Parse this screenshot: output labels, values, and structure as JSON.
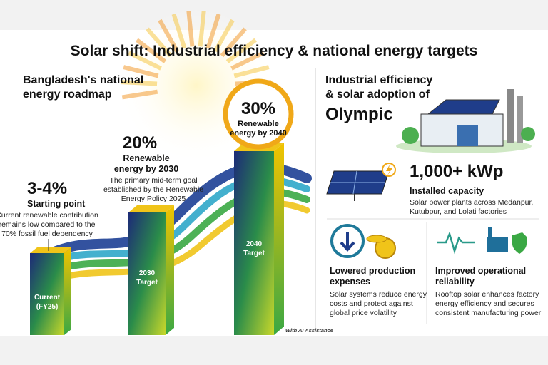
{
  "title": "Solar shift: Industrial efficiency & national energy targets",
  "roadmap": {
    "heading": [
      "Bangladesh's national",
      "energy roadmap"
    ],
    "milestones": [
      {
        "value": "3-4%",
        "label": [
          "Starting point"
        ],
        "description": [
          "Current renewable contribution",
          "remains low compared to the",
          "70% fossil fuel dependency"
        ],
        "bar_label": [
          "Current",
          "(FY25)"
        ]
      },
      {
        "value": "20%",
        "label": [
          "Renewable",
          "energy by 2030"
        ],
        "description": [
          "The primary mid-term goal",
          "established by the Renewable",
          "Energy Policy 2025"
        ],
        "bar_label": [
          "2030",
          "Target"
        ]
      },
      {
        "value": "30%",
        "label": [
          "Renewable",
          "energy by 2040"
        ],
        "bar_label": [
          "2040",
          "Target"
        ]
      }
    ]
  },
  "olympic": {
    "heading": [
      "Industrial efficiency",
      "& solar adoption of"
    ],
    "name": "Olympic",
    "capacity": {
      "value": "1,000+ kWp",
      "label": "Installed capacity",
      "description": [
        "Solar power plants across Medanpur,",
        "Kutubpur, and Lolati factories"
      ]
    },
    "benefits": [
      {
        "title": [
          "Lowered production",
          "expenses"
        ],
        "description": [
          "Solar systems reduce energy",
          "costs and protect against",
          "global price volatility"
        ]
      },
      {
        "title": [
          "Improved operational",
          "reliability"
        ],
        "description": [
          "Rooftop solar enhances factory",
          "energy efficiency and secures",
          "consistent manufacturing power"
        ]
      }
    ]
  },
  "footnote": "With AI Assistance"
}
